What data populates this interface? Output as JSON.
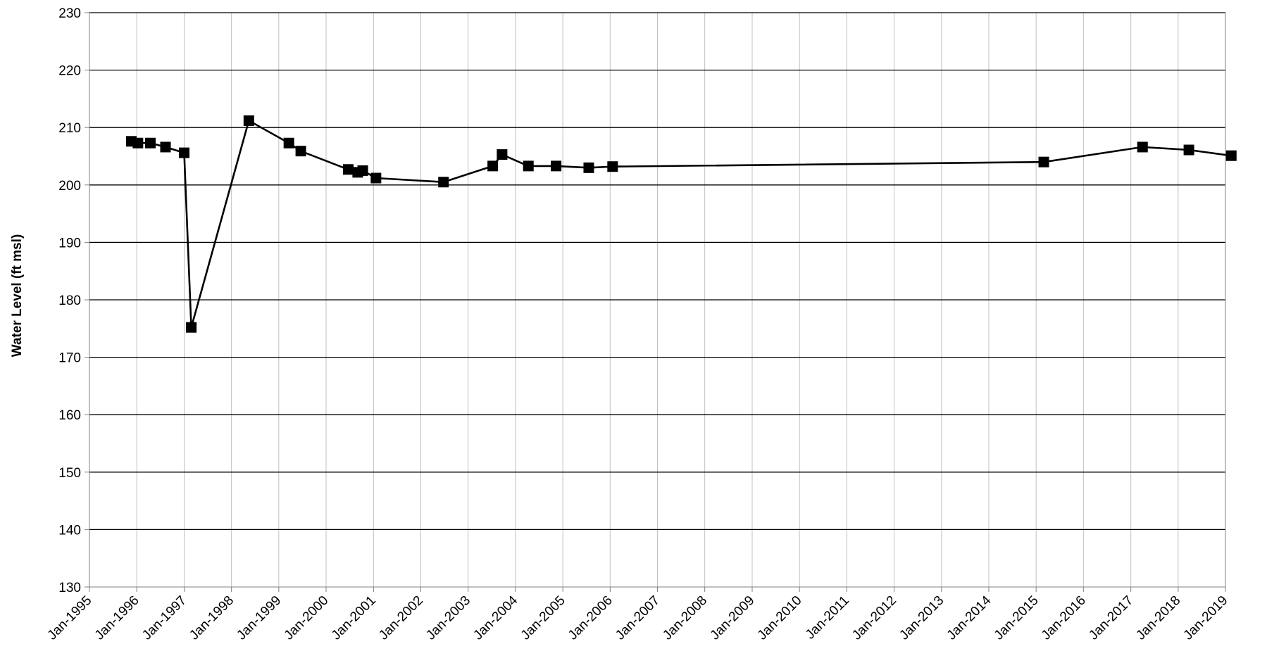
{
  "chart_data": {
    "type": "line",
    "title": "",
    "xlabel": "",
    "ylabel": "Water Level (ft msl)",
    "ylim": [
      130,
      230
    ],
    "yticks": [
      130,
      140,
      150,
      160,
      170,
      180,
      190,
      200,
      210,
      220,
      230
    ],
    "xlim": [
      "1995-01-01",
      "2019-01-01"
    ],
    "xticks": [
      {
        "date": "1995-01-01",
        "label": "Jan-1995"
      },
      {
        "date": "1996-01-01",
        "label": "Jan-1996"
      },
      {
        "date": "1997-01-01",
        "label": "Jan-1997"
      },
      {
        "date": "1998-01-01",
        "label": "Jan-1998"
      },
      {
        "date": "1999-01-01",
        "label": "Jan-1999"
      },
      {
        "date": "2000-01-01",
        "label": "Jan-2000"
      },
      {
        "date": "2001-01-01",
        "label": "Jan-2001"
      },
      {
        "date": "2002-01-01",
        "label": "Jan-2002"
      },
      {
        "date": "2003-01-01",
        "label": "Jan-2003"
      },
      {
        "date": "2004-01-01",
        "label": "Jan-2004"
      },
      {
        "date": "2005-01-01",
        "label": "Jan-2005"
      },
      {
        "date": "2006-01-01",
        "label": "Jan-2006"
      },
      {
        "date": "2007-01-01",
        "label": "Jan-2007"
      },
      {
        "date": "2008-01-01",
        "label": "Jan-2008"
      },
      {
        "date": "2009-01-01",
        "label": "Jan-2009"
      },
      {
        "date": "2010-01-01",
        "label": "Jan-2010"
      },
      {
        "date": "2011-01-01",
        "label": "Jan-2011"
      },
      {
        "date": "2012-01-01",
        "label": "Jan-2012"
      },
      {
        "date": "2013-01-01",
        "label": "Jan-2013"
      },
      {
        "date": "2014-01-01",
        "label": "Jan-2014"
      },
      {
        "date": "2015-01-01",
        "label": "Jan-2015"
      },
      {
        "date": "2016-01-01",
        "label": "Jan-2016"
      },
      {
        "date": "2017-01-01",
        "label": "Jan-2017"
      },
      {
        "date": "2018-01-01",
        "label": "Jan-2018"
      },
      {
        "date": "2019-01-01",
        "label": "Jan-2019"
      }
    ],
    "grid": true,
    "legend": "none",
    "series": [
      {
        "marker": "square",
        "color": "#000000",
        "points": [
          {
            "x": "1995-11-20",
            "y": 207.6
          },
          {
            "x": "1996-01-10",
            "y": 207.3
          },
          {
            "x": "1996-04-15",
            "y": 207.3
          },
          {
            "x": "1996-08-10",
            "y": 206.6
          },
          {
            "x": "1997-01-01",
            "y": 205.6
          },
          {
            "x": "1997-02-25",
            "y": 175.2
          },
          {
            "x": "1998-05-15",
            "y": 211.2
          },
          {
            "x": "1999-03-20",
            "y": 207.3
          },
          {
            "x": "1999-06-20",
            "y": 205.9
          },
          {
            "x": "2000-06-20",
            "y": 202.7
          },
          {
            "x": "2000-09-01",
            "y": 202.2
          },
          {
            "x": "2000-10-10",
            "y": 202.5
          },
          {
            "x": "2001-01-20",
            "y": 201.2
          },
          {
            "x": "2002-06-25",
            "y": 200.5
          },
          {
            "x": "2003-07-10",
            "y": 203.3
          },
          {
            "x": "2003-09-20",
            "y": 205.3
          },
          {
            "x": "2004-04-10",
            "y": 203.3
          },
          {
            "x": "2004-11-10",
            "y": 203.3
          },
          {
            "x": "2005-07-20",
            "y": 203.0
          },
          {
            "x": "2006-01-20",
            "y": 203.2
          },
          {
            "x": "2015-03-01",
            "y": 204.0
          },
          {
            "x": "2017-04-01",
            "y": 206.6
          },
          {
            "x": "2018-03-25",
            "y": 206.1
          },
          {
            "x": "2019-02-15",
            "y": 205.1
          }
        ]
      }
    ],
    "colors": {
      "line": "#000000",
      "marker": "#000000",
      "horizontal_grid": "#000000",
      "vertical_grid": "#c0c0c0",
      "axis": "#808080"
    }
  }
}
